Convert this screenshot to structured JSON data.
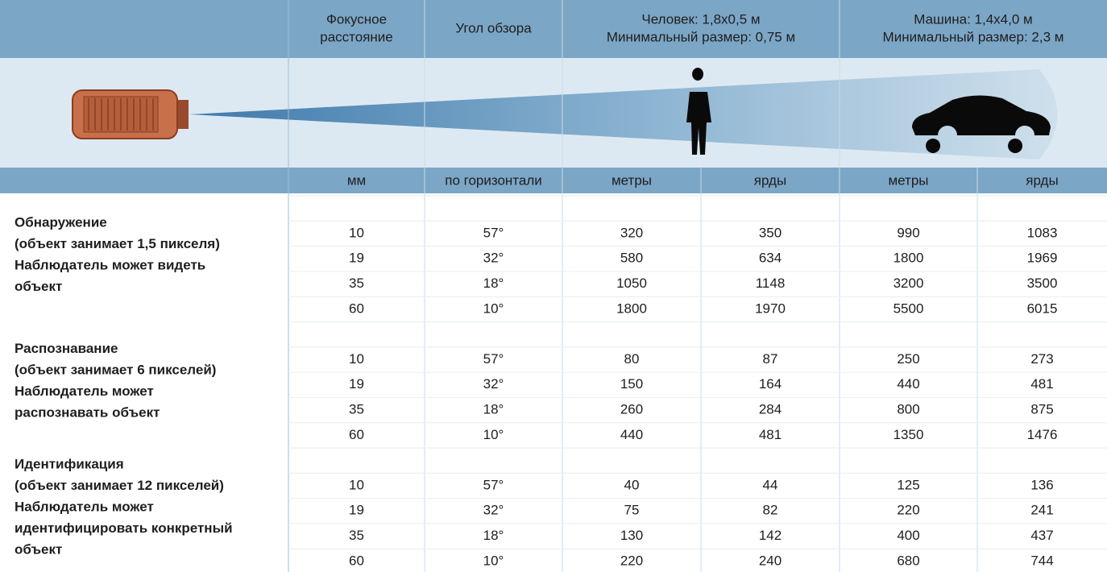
{
  "header": {
    "columns": [
      [
        "Фокусное",
        "расстояние"
      ],
      [
        "Угол обзора"
      ],
      [
        "Человек: 1,8x0,5 м",
        "Минимальный размер: 0,75 м"
      ],
      [
        "Машина: 1,4x4,0 м",
        "Минимальный размер: 2,3 м"
      ]
    ]
  },
  "units": [
    "мм",
    "по горизонтали",
    "метры",
    "ярды",
    "метры",
    "ярды"
  ],
  "groups": [
    {
      "label": [
        "Обнаружение",
        "(объект занимает 1,5 пикселя)",
        "Наблюдатель может видеть",
        "объект"
      ],
      "rows": [
        [
          10,
          "57°",
          320,
          350,
          990,
          1083
        ],
        [
          19,
          "32°",
          580,
          634,
          1800,
          1969
        ],
        [
          35,
          "18°",
          1050,
          1148,
          3200,
          3500
        ],
        [
          60,
          "10°",
          1800,
          1970,
          5500,
          6015
        ]
      ]
    },
    {
      "label": [
        "Распознавание",
        "(объект занимает 6 пикселей)",
        "Наблюдатель может",
        "распознавать объект"
      ],
      "rows": [
        [
          10,
          "57°",
          80,
          87,
          250,
          273
        ],
        [
          19,
          "32°",
          150,
          164,
          440,
          481
        ],
        [
          35,
          "18°",
          260,
          284,
          800,
          875
        ],
        [
          60,
          "10°",
          440,
          481,
          1350,
          1476
        ]
      ]
    },
    {
      "label": [
        "Идентификация",
        "(объект занимает 12 пикселей)",
        "Наблюдатель может",
        "идентифицировать конкретный",
        "объект"
      ],
      "rows": [
        [
          10,
          "57°",
          40,
          44,
          125,
          136
        ],
        [
          19,
          "32°",
          75,
          82,
          220,
          241
        ],
        [
          35,
          "18°",
          130,
          142,
          400,
          437
        ],
        [
          60,
          "10°",
          220,
          240,
          680,
          744
        ]
      ]
    }
  ]
}
